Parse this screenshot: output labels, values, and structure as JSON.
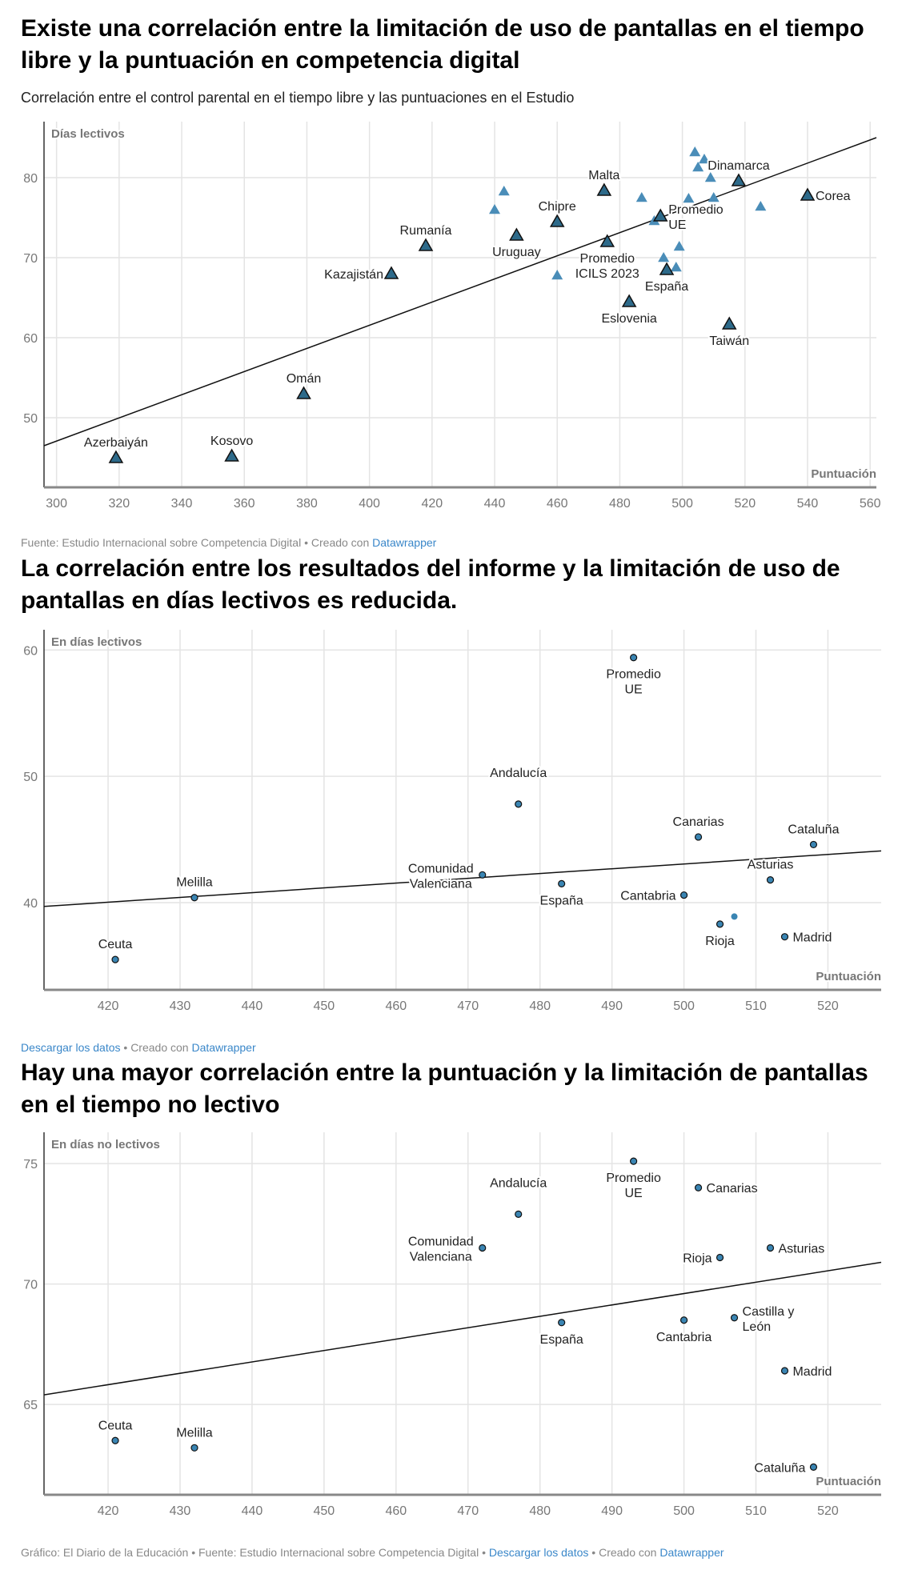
{
  "colors": {
    "dark_marker": "#2d6a8a",
    "light_marker": "#4a8db8",
    "dot": "#3a85b3",
    "grid": "#e4e4e4",
    "link": "#3a87c9"
  },
  "chart_data": [
    {
      "type": "scatter",
      "title": "Existe una correlación entre la limitación de uso de pantallas en el tiempo libre y la puntuación en competencia digital",
      "subtitle": "Correlación entre el control parental en el tiempo libre y las puntuaciones en el Estudio",
      "xlabel": "Puntuación",
      "ylabel": "Días lectivos",
      "xlim": [
        296,
        562
      ],
      "ylim": [
        41.3,
        87
      ],
      "xticks": [
        300,
        320,
        340,
        360,
        380,
        400,
        420,
        440,
        460,
        480,
        500,
        520,
        540,
        560
      ],
      "yticks": [
        50,
        60,
        70,
        80
      ],
      "marker": "triangle",
      "trendline": [
        [
          296,
          46.5
        ],
        [
          562,
          85
        ]
      ],
      "points": [
        {
          "label": [
            "Azerbaiyán"
          ],
          "x": 319,
          "y": 45,
          "pos": "above",
          "hl": true
        },
        {
          "label": [
            "Kosovo"
          ],
          "x": 356,
          "y": 45.2,
          "pos": "above",
          "hl": true
        },
        {
          "label": [
            "Omán"
          ],
          "x": 379,
          "y": 53,
          "pos": "above",
          "hl": true
        },
        {
          "label": [
            "Kazajistán"
          ],
          "x": 407,
          "y": 68,
          "pos": "left",
          "hl": true
        },
        {
          "label": [
            "Rumanía"
          ],
          "x": 418,
          "y": 71.5,
          "pos": "above",
          "hl": true
        },
        {
          "label": [
            "Uruguay"
          ],
          "x": 447,
          "y": 72.8,
          "pos": "below",
          "hl": true
        },
        {
          "label": [
            "Chipre"
          ],
          "x": 460,
          "y": 74.5,
          "pos": "above",
          "hl": true
        },
        {
          "label": [
            "Malta"
          ],
          "x": 475,
          "y": 78.4,
          "pos": "above",
          "hl": true
        },
        {
          "label": [
            "Promedio",
            "ICILS 2023"
          ],
          "x": 476,
          "y": 72,
          "pos": "below",
          "hl": true
        },
        {
          "label": [
            "Eslovenia"
          ],
          "x": 483,
          "y": 64.5,
          "pos": "below",
          "hl": true
        },
        {
          "label": [
            "España"
          ],
          "x": 495,
          "y": 68.5,
          "pos": "below",
          "hl": true
        },
        {
          "label": [
            "Promedio",
            "UE"
          ],
          "x": 493,
          "y": 75.2,
          "pos": "right",
          "hl": true
        },
        {
          "label": [
            "Dinamarca"
          ],
          "x": 518,
          "y": 79.6,
          "pos": "above",
          "hl": true
        },
        {
          "label": [
            "Taiwán"
          ],
          "x": 515,
          "y": 61.7,
          "pos": "below",
          "hl": true
        },
        {
          "label": [
            "Corea"
          ],
          "x": 540,
          "y": 77.8,
          "pos": "right",
          "hl": true
        },
        {
          "x": 443,
          "y": 78.3
        },
        {
          "x": 440,
          "y": 76
        },
        {
          "x": 460,
          "y": 67.8
        },
        {
          "x": 487,
          "y": 77.5
        },
        {
          "x": 491,
          "y": 74.6
        },
        {
          "x": 494,
          "y": 70
        },
        {
          "x": 498,
          "y": 68.8
        },
        {
          "x": 499,
          "y": 71.4
        },
        {
          "x": 502,
          "y": 77.4
        },
        {
          "x": 504,
          "y": 83.2
        },
        {
          "x": 505,
          "y": 81.3
        },
        {
          "x": 507,
          "y": 82.3
        },
        {
          "x": 509,
          "y": 80
        },
        {
          "x": 510,
          "y": 77.5
        },
        {
          "x": 525,
          "y": 76.4
        }
      ],
      "source": {
        "text": "Fuente: Estudio Internacional sobre Competencia Digital • Creado con ",
        "link": "Datawrapper"
      }
    },
    {
      "type": "scatter",
      "title": "La correlación entre los resultados del informe y la limitación de uso de pantallas en días lectivos es reducida.",
      "xlabel": "Puntuación",
      "ylabel": "En días lectivos",
      "xlim": [
        411.1,
        527.4
      ],
      "ylim": [
        33.1,
        61.6
      ],
      "xticks": [
        420,
        430,
        440,
        450,
        460,
        470,
        480,
        490,
        500,
        510,
        520
      ],
      "yticks": [
        40,
        50,
        60
      ],
      "marker": "circle",
      "trendline": [
        [
          411.1,
          39.7
        ],
        [
          527.4,
          44.1
        ]
      ],
      "points": [
        {
          "label": [
            "Ceuta"
          ],
          "x": 421,
          "y": 35.5,
          "pos": "above",
          "hl": true
        },
        {
          "label": [
            "Melilla"
          ],
          "x": 432,
          "y": 40.4,
          "pos": "above",
          "hl": true
        },
        {
          "label": [
            "Comunidad",
            "Valenciana"
          ],
          "x": 472,
          "y": 42.2,
          "pos": "left",
          "hl": true
        },
        {
          "label": [
            "Andalucía"
          ],
          "x": 477,
          "y": 47.8,
          "pos": "farabove",
          "hl": true
        },
        {
          "label": [
            "España"
          ],
          "x": 483,
          "y": 41.5,
          "pos": "below",
          "hl": true
        },
        {
          "label": [
            "Promedio",
            "UE"
          ],
          "x": 493,
          "y": 59.4,
          "pos": "below",
          "hl": true
        },
        {
          "label": [
            "Canarias"
          ],
          "x": 502,
          "y": 45.2,
          "pos": "above",
          "hl": true
        },
        {
          "label": [
            "Cantabria"
          ],
          "x": 500,
          "y": 40.6,
          "pos": "left",
          "hl": true
        },
        {
          "label": [
            "Rioja"
          ],
          "x": 505,
          "y": 38.3,
          "pos": "below",
          "hl": true
        },
        {
          "label": [
            "Asturias"
          ],
          "x": 512,
          "y": 41.8,
          "pos": "above",
          "hl": true
        },
        {
          "label": [
            "Madrid"
          ],
          "x": 514,
          "y": 37.3,
          "pos": "right",
          "hl": true
        },
        {
          "label": [
            "Cataluña"
          ],
          "x": 518,
          "y": 44.6,
          "pos": "above",
          "hl": true
        },
        {
          "x": 507,
          "y": 38.9
        }
      ],
      "source": {
        "text": " • Creado con ",
        "link1": "Descargar los datos",
        "link": "Datawrapper"
      }
    },
    {
      "type": "scatter",
      "title": "Hay una mayor correlación entre la puntuación y la limitación de pantallas en el tiempo no lectivo",
      "xlabel": "Puntuación",
      "ylabel": "En días no lectivos",
      "xlim": [
        411.1,
        527.4
      ],
      "ylim": [
        61.25,
        76.3
      ],
      "xticks": [
        420,
        430,
        440,
        450,
        460,
        470,
        480,
        490,
        500,
        510,
        520
      ],
      "yticks": [
        65,
        70,
        75
      ],
      "marker": "circle",
      "trendline": [
        [
          411.1,
          65.4
        ],
        [
          527.4,
          70.9
        ]
      ],
      "points": [
        {
          "label": [
            "Ceuta"
          ],
          "x": 421,
          "y": 63.5,
          "pos": "above",
          "hl": true
        },
        {
          "label": [
            "Melilla"
          ],
          "x": 432,
          "y": 63.2,
          "pos": "above",
          "hl": true
        },
        {
          "label": [
            "Comunidad",
            "Valenciana"
          ],
          "x": 472,
          "y": 71.5,
          "pos": "left",
          "hl": true
        },
        {
          "label": [
            "Andalucía"
          ],
          "x": 477,
          "y": 72.9,
          "pos": "farabove",
          "hl": true
        },
        {
          "label": [
            "España"
          ],
          "x": 483,
          "y": 68.4,
          "pos": "below",
          "hl": true
        },
        {
          "label": [
            "Promedio",
            "UE"
          ],
          "x": 493,
          "y": 75.1,
          "pos": "below",
          "hl": true
        },
        {
          "label": [
            "Canarias"
          ],
          "x": 502,
          "y": 74,
          "pos": "right",
          "hl": true
        },
        {
          "label": [
            "Cantabria"
          ],
          "x": 500,
          "y": 68.5,
          "pos": "below",
          "hl": true
        },
        {
          "label": [
            "Rioja"
          ],
          "x": 505,
          "y": 71.1,
          "pos": "left",
          "hl": true
        },
        {
          "label": [
            "Castilla y",
            "León"
          ],
          "x": 507,
          "y": 68.6,
          "pos": "right",
          "hl": true
        },
        {
          "label": [
            "Asturias"
          ],
          "x": 512,
          "y": 71.5,
          "pos": "right",
          "hl": true
        },
        {
          "label": [
            "Madrid"
          ],
          "x": 514,
          "y": 66.4,
          "pos": "right",
          "hl": true
        },
        {
          "label": [
            "Cataluña"
          ],
          "x": 518,
          "y": 62.4,
          "pos": "left",
          "hl": true
        }
      ]
    }
  ],
  "footer": {
    "text1": "Gráfico: El Diario de la Educación • Fuente: Estudio Internacional sobre Competencia Digital • ",
    "link1": "Descargar los datos",
    "text2": " • Creado con ",
    "link2": "Datawrapper"
  }
}
